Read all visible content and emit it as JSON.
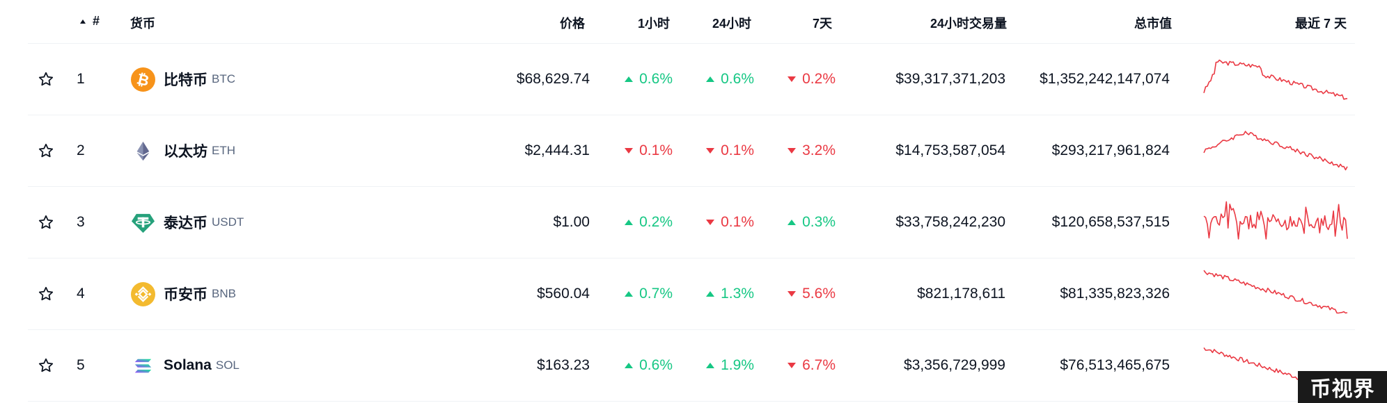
{
  "header": {
    "rank": "#",
    "coin": "货币",
    "price": "价格",
    "h1": "1小时",
    "h24": "24小时",
    "d7": "7天",
    "volume": "24小时交易量",
    "market_cap": "总市值",
    "chart": "最近 7 天"
  },
  "rows": [
    {
      "rank": "1",
      "name": "比特币",
      "symbol": "BTC",
      "icon": "bitcoin-icon",
      "icon_color": "#f7931a",
      "price": "$68,629.74",
      "h1": "0.6%",
      "h1_dir": "up",
      "h24": "0.6%",
      "h24_dir": "up",
      "d7": "0.2%",
      "d7_dir": "down",
      "volume": "$39,317,371,203",
      "market_cap": "$1,352,242,147,074"
    },
    {
      "rank": "2",
      "name": "以太坊",
      "symbol": "ETH",
      "icon": "ethereum-icon",
      "icon_color": "#627eea",
      "price": "$2,444.31",
      "h1": "0.1%",
      "h1_dir": "down",
      "h24": "0.1%",
      "h24_dir": "down",
      "d7": "3.2%",
      "d7_dir": "down",
      "volume": "$14,753,587,054",
      "market_cap": "$293,217,961,824"
    },
    {
      "rank": "3",
      "name": "泰达币",
      "symbol": "USDT",
      "icon": "tether-icon",
      "icon_color": "#26a17b",
      "price": "$1.00",
      "h1": "0.2%",
      "h1_dir": "up",
      "h24": "0.1%",
      "h24_dir": "down",
      "d7": "0.3%",
      "d7_dir": "up",
      "volume": "$33,758,242,230",
      "market_cap": "$120,658,537,515"
    },
    {
      "rank": "4",
      "name": "币安币",
      "symbol": "BNB",
      "icon": "bnb-icon",
      "icon_color": "#f3ba2f",
      "price": "$560.04",
      "h1": "0.7%",
      "h1_dir": "up",
      "h24": "1.3%",
      "h24_dir": "up",
      "d7": "5.6%",
      "d7_dir": "down",
      "volume": "$821,178,611",
      "market_cap": "$81,335,823,326"
    },
    {
      "rank": "5",
      "name": "Solana",
      "symbol": "SOL",
      "icon": "solana-icon",
      "icon_color": "#9945ff",
      "price": "$163.23",
      "h1": "0.6%",
      "h1_dir": "up",
      "h24": "1.9%",
      "h24_dir": "up",
      "d7": "6.7%",
      "d7_dir": "down",
      "volume": "$3,356,729,999",
      "market_cap": "$76,513,465,675"
    }
  ],
  "colors": {
    "up": "#16c784",
    "down": "#ea3943",
    "sparkline": "#ea3943"
  },
  "watermark": "币视界"
}
